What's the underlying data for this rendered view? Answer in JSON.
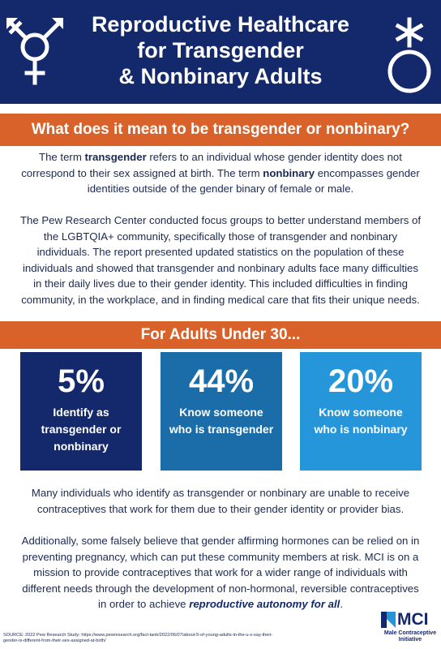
{
  "header": {
    "title_line1": "Reproductive Healthcare",
    "title_line2": "for Transgender",
    "title_line3": "& Nonbinary Adults",
    "left_symbol": "transgender-symbol-icon",
    "right_symbol": "asterisk-circle-symbol-icon"
  },
  "section1": {
    "heading": "What does it mean to be transgender or nonbinary?",
    "p1_a": "The term ",
    "p1_term1": "transgender",
    "p1_b": " refers to an individual whose gender identity does not correspond to their sex assigned at birth. The term ",
    "p1_term2": "nonbinary",
    "p1_c": " encompasses gender identities outside of the gender binary of female or male.",
    "p2": "The Pew Research Center conducted focus groups to better understand members of the LGBTQIA+ community, specifically those of transgender and nonbinary individuals. The report presented updated statistics on the population of these individuals and showed that transgender and nonbinary adults face many difficulties in their daily lives due to their gender identity. This included difficulties in finding community, in the workplace, and in finding medical care that fits their unique needs."
  },
  "section2": {
    "heading": "For Adults Under 30...",
    "stats": [
      {
        "value": "5%",
        "label": "Identify as transgender or nonbinary"
      },
      {
        "value": "44%",
        "label": "Know someone who is transgender"
      },
      {
        "value": "20%",
        "label": "Know someone who is nonbinary"
      }
    ]
  },
  "closing": {
    "p3": "Many individuals who identify as transgender or nonbinary are unable to receive contraceptives that work for them due to their gender identity or provider bias.",
    "p4_a": "Additionally, some falsely believe that gender affirming hormones can be relied on in preventing pregnancy, which can put these community members at risk. MCI is on a mission to provide contraceptives that work for a wider range of individuals with different needs through the development of non-hormonal, reversible contraceptives in order to achieve ",
    "p4_em": "reproductive autonomy for all",
    "p4_end": "."
  },
  "footer": {
    "source": "SOURCE: 2022 Pew Research Study: https://www.pewresearch.org/fact-tank/2022/06/07/about-5-of-young-adults-in-the-u-s-say-their-gender-is-different-from-their-sex-assigned-at-birth/",
    "logo_abbr": "MCI",
    "logo_name_line1": "Male Contraceptive",
    "logo_name_line2": "Initiative"
  },
  "colors": {
    "navy": "#14296b",
    "orange": "#d9622b",
    "mid_blue": "#1a6da8",
    "light_blue": "#2596d9"
  }
}
